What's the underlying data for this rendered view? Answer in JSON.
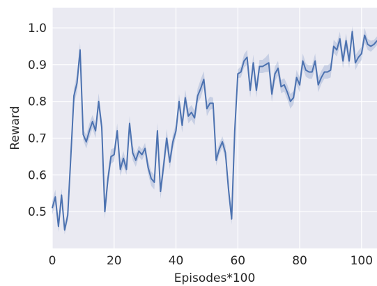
{
  "chart_data": {
    "type": "line",
    "title": "",
    "xlabel": "Episodes*100",
    "ylabel": "Reward",
    "xlim": [
      0,
      105
    ],
    "ylim": [
      0.4,
      1.055
    ],
    "x_ticks": [
      0,
      20,
      40,
      60,
      80,
      100
    ],
    "x_tick_labels": [
      "0",
      "20",
      "40",
      "60",
      "80",
      "100"
    ],
    "y_ticks": [
      0.5,
      0.6,
      0.7,
      0.8,
      0.9,
      1.0
    ],
    "y_tick_labels": [
      "0.5",
      "0.6",
      "0.7",
      "0.8",
      "0.9",
      "1.0"
    ],
    "grid": true,
    "background_color": "#eaeaf2",
    "line_color": "#4c72b0",
    "band_color": "#4c72b0",
    "series": [
      {
        "x": [
          0,
          1,
          2,
          3,
          4,
          5,
          6,
          7,
          8,
          9,
          10,
          11,
          12,
          13,
          14,
          15,
          16,
          17,
          18,
          19,
          20,
          21,
          22,
          23,
          24,
          25,
          26,
          27,
          28,
          29,
          30,
          31,
          32,
          33,
          34,
          35,
          36,
          37,
          38,
          39,
          40,
          41,
          42,
          43,
          44,
          45,
          46,
          47,
          48,
          49,
          50,
          51,
          52,
          53,
          54,
          55,
          56,
          57,
          58,
          59,
          60,
          61,
          62,
          63,
          64,
          65,
          66,
          67,
          68,
          69,
          70,
          71,
          72,
          73,
          74,
          75,
          76,
          77,
          78,
          79,
          80,
          81,
          82,
          83,
          84,
          85,
          86,
          87,
          88,
          89,
          90,
          91,
          92,
          93,
          94,
          95,
          96,
          97,
          98,
          99,
          100,
          101,
          102,
          103,
          104,
          105
        ],
        "values": [
          0.51,
          0.54,
          0.46,
          0.545,
          0.45,
          0.49,
          0.65,
          0.815,
          0.85,
          0.94,
          0.71,
          0.69,
          0.72,
          0.745,
          0.72,
          0.8,
          0.73,
          0.5,
          0.59,
          0.65,
          0.655,
          0.72,
          0.615,
          0.645,
          0.615,
          0.74,
          0.66,
          0.64,
          0.665,
          0.655,
          0.672,
          0.62,
          0.59,
          0.58,
          0.72,
          0.555,
          0.625,
          0.7,
          0.635,
          0.69,
          0.72,
          0.8,
          0.735,
          0.81,
          0.76,
          0.77,
          0.755,
          0.815,
          0.835,
          0.86,
          0.78,
          0.795,
          0.795,
          0.64,
          0.67,
          0.69,
          0.66,
          0.56,
          0.48,
          0.72,
          0.875,
          0.88,
          0.91,
          0.92,
          0.83,
          0.905,
          0.83,
          0.895,
          0.895,
          0.9,
          0.905,
          0.82,
          0.875,
          0.89,
          0.84,
          0.845,
          0.825,
          0.8,
          0.81,
          0.865,
          0.845,
          0.91,
          0.885,
          0.88,
          0.88,
          0.91,
          0.845,
          0.865,
          0.88,
          0.88,
          0.885,
          0.95,
          0.94,
          0.97,
          0.91,
          0.965,
          0.91,
          0.99,
          0.905,
          0.92,
          0.93,
          0.98,
          0.955,
          0.95,
          0.955,
          0.965
        ],
        "band": [
          0.018,
          0.02,
          0.015,
          0.018,
          0.012,
          0.015,
          0.02,
          0.02,
          0.025,
          0.02,
          0.015,
          0.018,
          0.02,
          0.018,
          0.02,
          0.022,
          0.02,
          0.02,
          0.02,
          0.02,
          0.018,
          0.02,
          0.018,
          0.02,
          0.015,
          0.02,
          0.02,
          0.018,
          0.015,
          0.015,
          0.015,
          0.018,
          0.02,
          0.02,
          0.022,
          0.02,
          0.025,
          0.025,
          0.02,
          0.02,
          0.018,
          0.02,
          0.02,
          0.022,
          0.02,
          0.02,
          0.02,
          0.02,
          0.025,
          0.022,
          0.02,
          0.018,
          0.015,
          0.015,
          0.015,
          0.015,
          0.02,
          0.02,
          0.015,
          0.02,
          0.012,
          0.015,
          0.018,
          0.02,
          0.02,
          0.022,
          0.02,
          0.018,
          0.018,
          0.02,
          0.025,
          0.022,
          0.02,
          0.02,
          0.018,
          0.018,
          0.02,
          0.02,
          0.018,
          0.02,
          0.02,
          0.02,
          0.018,
          0.018,
          0.018,
          0.02,
          0.02,
          0.018,
          0.018,
          0.018,
          0.02,
          0.018,
          0.018,
          0.02,
          0.02,
          0.02,
          0.02,
          0.015,
          0.02,
          0.018,
          0.018,
          0.02,
          0.015,
          0.015,
          0.012,
          0.012
        ]
      }
    ]
  }
}
